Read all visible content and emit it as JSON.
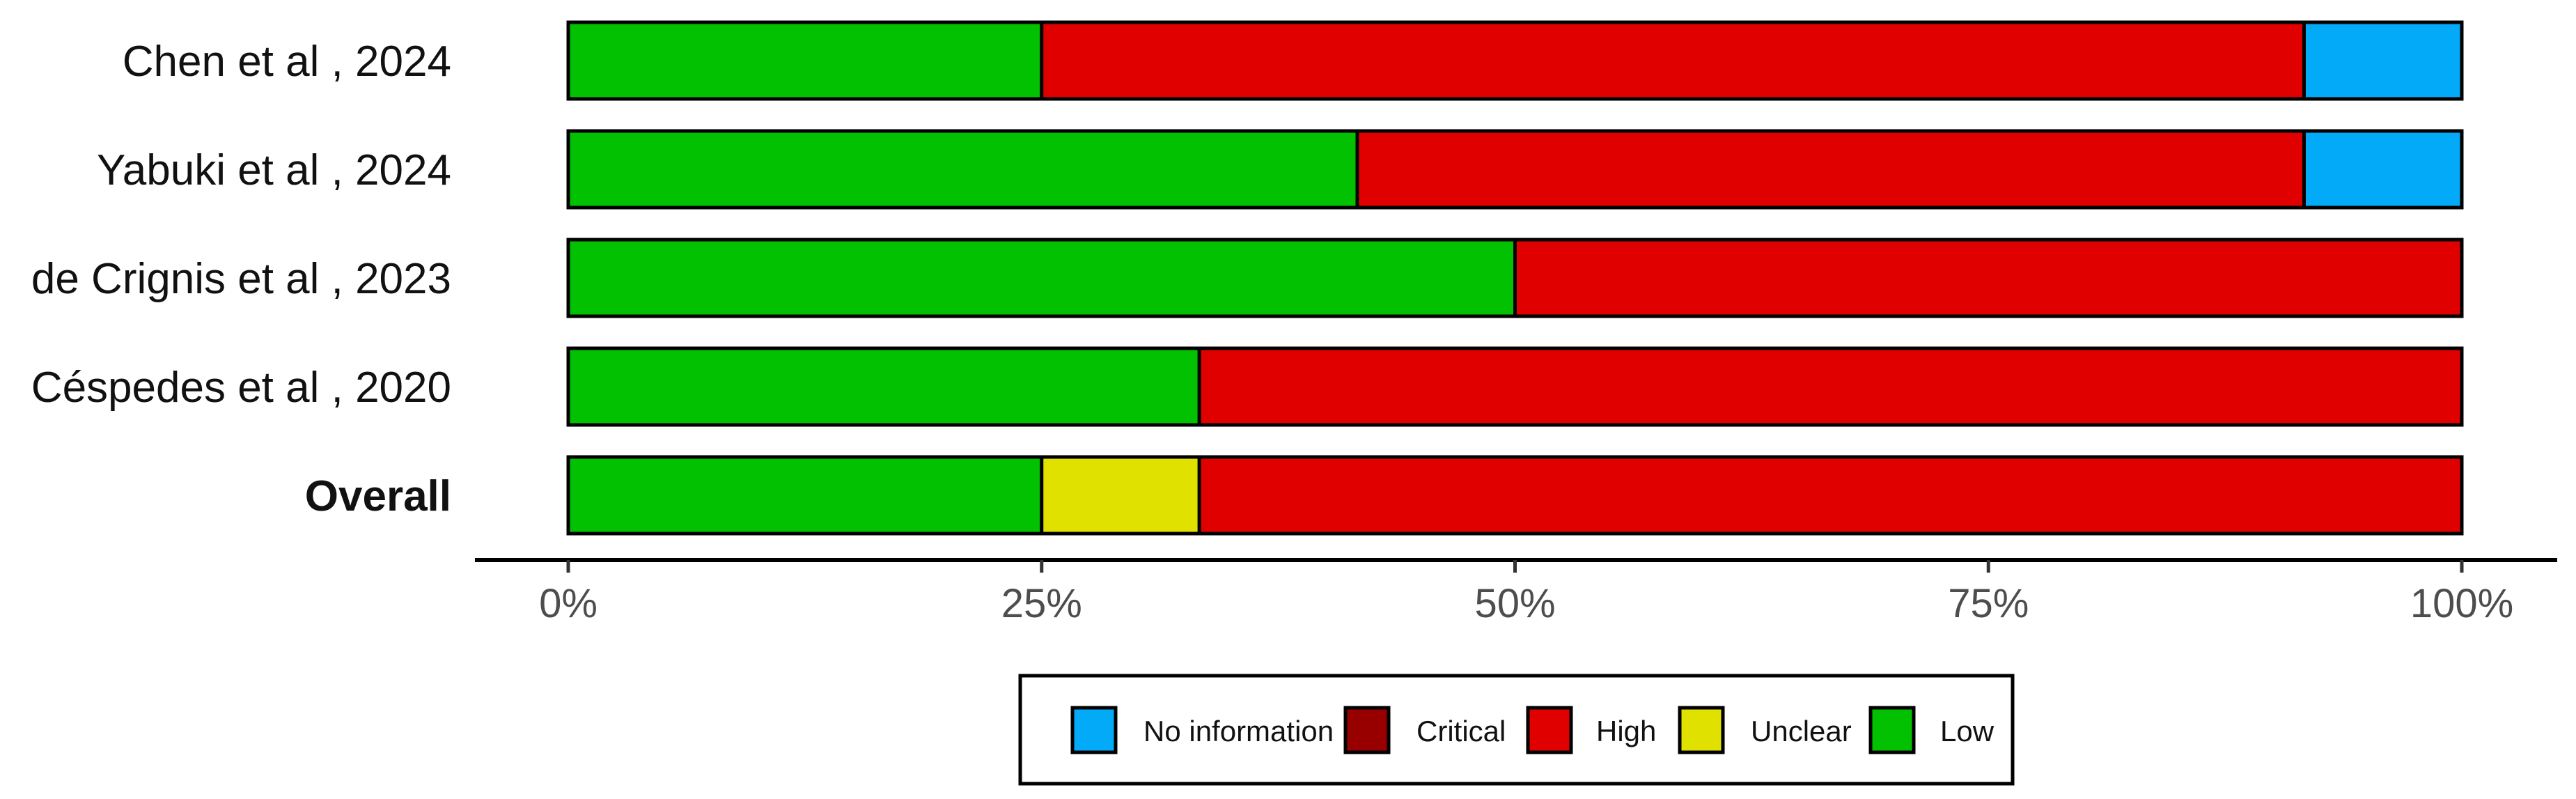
{
  "chart_data": {
    "type": "bar",
    "orientation": "horizontal",
    "stacked": true,
    "categories": [
      "Chen et al , 2024",
      "Yabuki et al , 2024",
      "de Crignis et al , 2023",
      "Céspedes et al , 2020",
      "Overall"
    ],
    "bold_categories": [
      "Overall"
    ],
    "series": [
      {
        "name": "Low",
        "color": "#02C100",
        "values": [
          25,
          41.67,
          50,
          33.33,
          25
        ]
      },
      {
        "name": "Unclear",
        "color": "#E1E100",
        "values": [
          0,
          0,
          0,
          0,
          8.33
        ]
      },
      {
        "name": "High",
        "color": "#E10000",
        "values": [
          66.67,
          50,
          50,
          66.67,
          66.67
        ]
      },
      {
        "name": "Critical",
        "color": "#980000",
        "values": [
          0,
          0,
          0,
          0,
          0
        ]
      },
      {
        "name": "No information",
        "color": "#02AAF7",
        "values": [
          8.33,
          8.33,
          0,
          0,
          0
        ]
      }
    ],
    "xlim": [
      0,
      100
    ],
    "x_ticks": [
      0,
      25,
      50,
      75,
      100
    ],
    "x_tick_labels": [
      "0%",
      "25%",
      "50%",
      "75%",
      "100%"
    ],
    "legend": {
      "position": "bottom",
      "order": [
        "No information",
        "Critical",
        "High",
        "Unclear",
        "Low"
      ]
    },
    "grid": false
  }
}
